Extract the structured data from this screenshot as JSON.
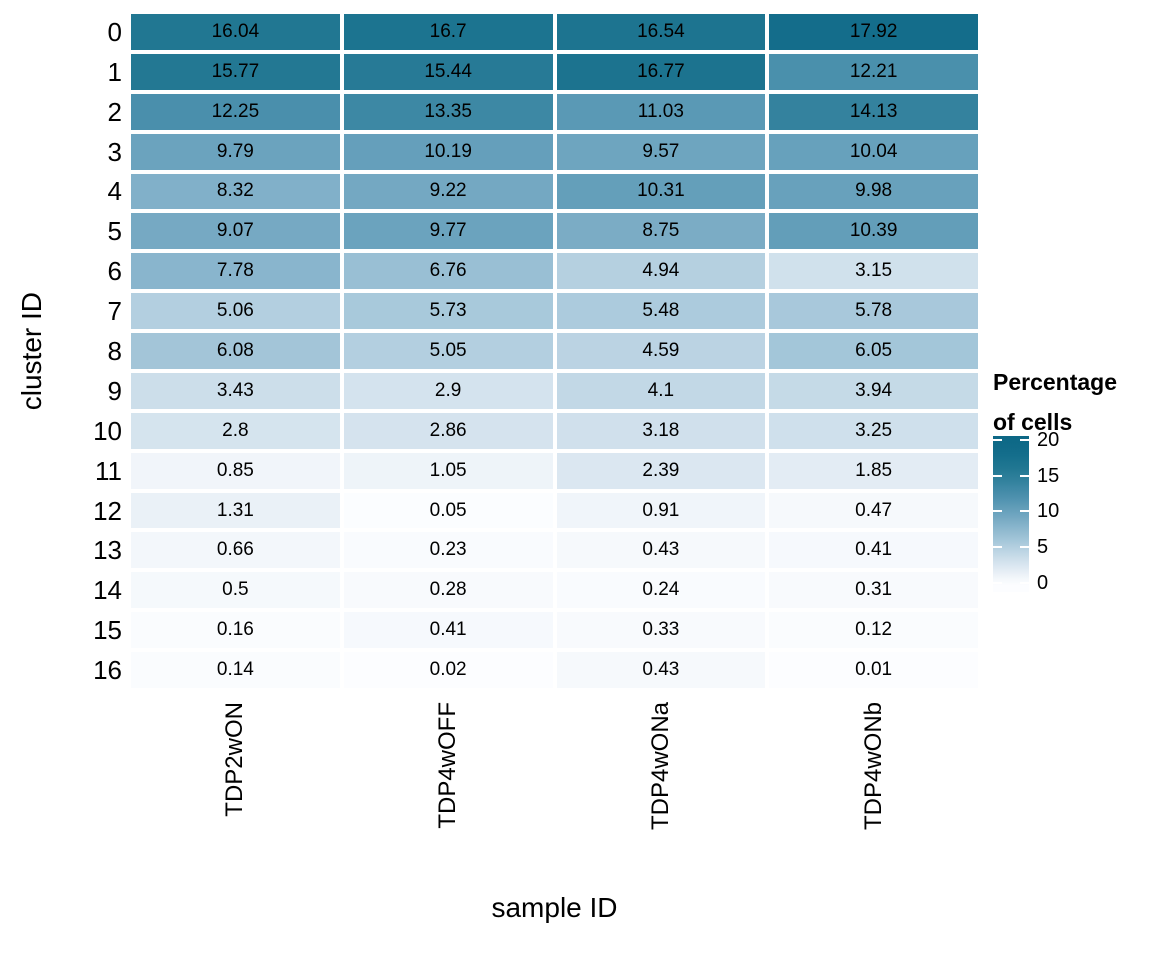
{
  "figure": {
    "y_axis_title": "cluster ID",
    "x_axis_title": "sample ID"
  },
  "legend": {
    "title_line1": "Percentage",
    "title_line2": "of cells",
    "tick_labels": [
      "20",
      "15",
      "10",
      "5",
      "0"
    ],
    "tick_values": [
      20,
      15,
      10,
      5,
      0
    ]
  },
  "chart_data": {
    "type": "heatmap",
    "title": "",
    "xlabel": "sample ID",
    "ylabel": "cluster ID",
    "legend_title": "Percentage of cells",
    "legend_position": "right",
    "grid": false,
    "x_categories": [
      "TDP2wON",
      "TDP4wOFF",
      "TDP4wONa",
      "TDP4wONb"
    ],
    "y_categories": [
      "0",
      "1",
      "2",
      "3",
      "4",
      "5",
      "6",
      "7",
      "8",
      "9",
      "10",
      "11",
      "12",
      "13",
      "14",
      "15",
      "16"
    ],
    "values": [
      [
        16.04,
        16.7,
        16.54,
        17.92
      ],
      [
        15.77,
        15.44,
        16.77,
        12.21
      ],
      [
        12.25,
        13.35,
        11.03,
        14.13
      ],
      [
        9.79,
        10.19,
        9.57,
        10.04
      ],
      [
        8.32,
        9.22,
        10.31,
        9.98
      ],
      [
        9.07,
        9.77,
        8.75,
        10.39
      ],
      [
        7.78,
        6.76,
        4.94,
        3.15
      ],
      [
        5.06,
        5.73,
        5.48,
        5.78
      ],
      [
        6.08,
        5.05,
        4.59,
        6.05
      ],
      [
        3.43,
        2.9,
        4.1,
        3.94
      ],
      [
        2.8,
        2.86,
        3.18,
        3.25
      ],
      [
        0.85,
        1.05,
        2.39,
        1.85
      ],
      [
        1.31,
        0.05,
        0.91,
        0.47
      ],
      [
        0.66,
        0.23,
        0.43,
        0.41
      ],
      [
        0.5,
        0.28,
        0.24,
        0.31
      ],
      [
        0.16,
        0.41,
        0.33,
        0.12
      ],
      [
        0.14,
        0.02,
        0.43,
        0.01
      ]
    ],
    "color_range": [
      0,
      20
    ],
    "colorscale": [
      {
        "v": 0,
        "color": "#fcfdff"
      },
      {
        "v": 2,
        "color": "#e1ebf3"
      },
      {
        "v": 4,
        "color": "#c4d9e7"
      },
      {
        "v": 6,
        "color": "#a4c6d9"
      },
      {
        "v": 8,
        "color": "#86b3cb"
      },
      {
        "v": 10,
        "color": "#68a1bc"
      },
      {
        "v": 12,
        "color": "#4d91ae"
      },
      {
        "v": 14,
        "color": "#35839f"
      },
      {
        "v": 16,
        "color": "#217792"
      },
      {
        "v": 18,
        "color": "#136d8b"
      },
      {
        "v": 20,
        "color": "#0d6886"
      }
    ]
  }
}
